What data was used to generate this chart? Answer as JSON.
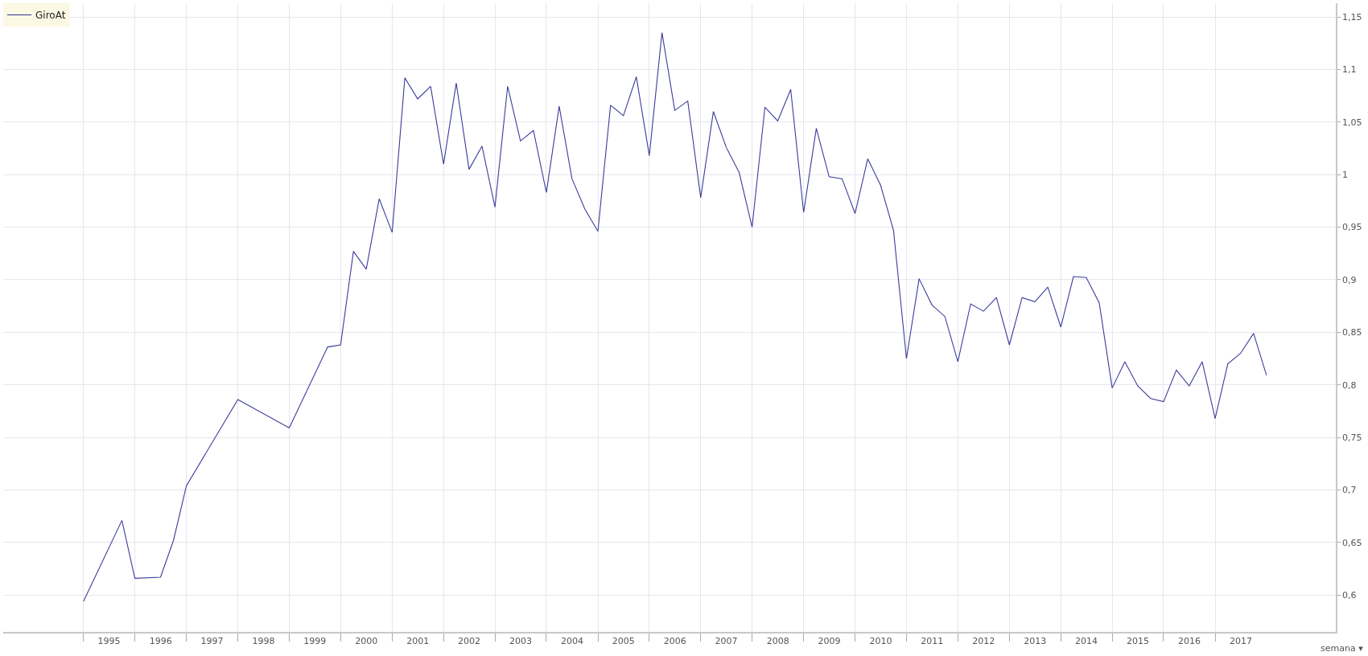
{
  "chart_data": {
    "type": "line",
    "x": [
      "1995-01-01",
      "1995-10-01",
      "1996-01-01",
      "1996-07-01",
      "1996-10-01",
      "1997-01-01",
      "1998-01-01",
      "1999-01-01",
      "1999-10-01",
      "2000-01-01",
      "2000-04-01",
      "2000-07-01",
      "2000-10-01",
      "2001-01-01",
      "2001-04-01",
      "2001-07-01",
      "2001-10-01",
      "2002-01-01",
      "2002-04-01",
      "2002-07-01",
      "2002-10-01",
      "2003-01-01",
      "2003-04-01",
      "2003-07-01",
      "2003-10-01",
      "2004-01-01",
      "2004-04-01",
      "2004-07-01",
      "2004-10-01",
      "2005-01-01",
      "2005-04-01",
      "2005-07-01",
      "2005-10-01",
      "2006-01-01",
      "2006-04-01",
      "2006-07-01",
      "2006-10-01",
      "2007-01-01",
      "2007-04-01",
      "2007-07-01",
      "2007-10-01",
      "2008-01-01",
      "2008-04-01",
      "2008-07-01",
      "2008-10-01",
      "2009-01-01",
      "2009-04-01",
      "2009-07-01",
      "2009-10-01",
      "2010-01-01",
      "2010-04-01",
      "2010-07-01",
      "2010-10-01",
      "2011-01-01",
      "2011-04-01",
      "2011-07-01",
      "2011-10-01",
      "2012-01-01",
      "2012-04-01",
      "2012-07-01",
      "2012-10-01",
      "2013-01-01",
      "2013-04-01",
      "2013-07-01",
      "2013-10-01",
      "2014-01-01",
      "2014-04-01",
      "2014-07-01",
      "2014-10-01",
      "2015-01-01",
      "2015-04-01",
      "2015-07-01",
      "2015-10-01",
      "2016-01-01",
      "2016-04-01",
      "2016-07-01",
      "2016-10-01",
      "2017-01-01",
      "2017-04-01",
      "2017-07-01",
      "2017-10-01",
      "2018-01-01"
    ],
    "series": [
      {
        "name": "GiroAt",
        "color": "#3c3c9c",
        "values": [
          0.594,
          0.671,
          0.616,
          0.617,
          0.652,
          0.704,
          0.786,
          0.759,
          0.836,
          0.838,
          0.927,
          0.91,
          0.977,
          0.945,
          1.092,
          1.072,
          1.084,
          1.01,
          1.087,
          1.005,
          1.027,
          0.969,
          1.084,
          1.032,
          1.042,
          0.983,
          1.065,
          0.996,
          0.967,
          0.946,
          1.066,
          1.056,
          1.093,
          1.018,
          1.135,
          1.061,
          1.07,
          0.978,
          1.06,
          1.026,
          1.002,
          0.95,
          1.064,
          1.051,
          1.081,
          0.964,
          1.044,
          0.998,
          0.996,
          0.963,
          1.015,
          0.99,
          0.947,
          0.825,
          0.901,
          0.876,
          0.865,
          0.822,
          0.877,
          0.87,
          0.883,
          0.838,
          0.883,
          0.879,
          0.893,
          0.855,
          0.903,
          0.902,
          0.878,
          0.797,
          0.822,
          0.799,
          0.787,
          0.784,
          0.814,
          0.799,
          0.822,
          0.768,
          0.82,
          0.83,
          0.849,
          0.809
        ]
      }
    ],
    "xlim": [
      "1993-06-10",
      "2019-05-08"
    ],
    "xticks": [
      {
        "value": "1995-01-01",
        "label": null
      },
      {
        "value": "1995-07-02",
        "label": "1995"
      },
      {
        "value": "1996-01-01",
        "label": null
      },
      {
        "value": "1996-07-02",
        "label": "1996"
      },
      {
        "value": "1997-01-01",
        "label": null
      },
      {
        "value": "1997-07-02",
        "label": "1997"
      },
      {
        "value": "1998-01-01",
        "label": null
      },
      {
        "value": "1998-07-02",
        "label": "1998"
      },
      {
        "value": "1999-01-01",
        "label": null
      },
      {
        "value": "1999-07-02",
        "label": "1999"
      },
      {
        "value": "2000-01-01",
        "label": null
      },
      {
        "value": "2000-07-02",
        "label": "2000"
      },
      {
        "value": "2001-01-01",
        "label": null
      },
      {
        "value": "2001-07-02",
        "label": "2001"
      },
      {
        "value": "2002-01-01",
        "label": null
      },
      {
        "value": "2002-07-02",
        "label": "2002"
      },
      {
        "value": "2003-01-01",
        "label": null
      },
      {
        "value": "2003-07-02",
        "label": "2003"
      },
      {
        "value": "2004-01-01",
        "label": null
      },
      {
        "value": "2004-07-02",
        "label": "2004"
      },
      {
        "value": "2005-01-01",
        "label": null
      },
      {
        "value": "2005-07-02",
        "label": "2005"
      },
      {
        "value": "2006-01-01",
        "label": null
      },
      {
        "value": "2006-07-02",
        "label": "2006"
      },
      {
        "value": "2007-01-01",
        "label": null
      },
      {
        "value": "2007-07-02",
        "label": "2007"
      },
      {
        "value": "2008-01-01",
        "label": null
      },
      {
        "value": "2008-07-02",
        "label": "2008"
      },
      {
        "value": "2009-01-01",
        "label": null
      },
      {
        "value": "2009-07-02",
        "label": "2009"
      },
      {
        "value": "2010-01-01",
        "label": null
      },
      {
        "value": "2010-07-02",
        "label": "2010"
      },
      {
        "value": "2011-01-01",
        "label": null
      },
      {
        "value": "2011-07-02",
        "label": "2011"
      },
      {
        "value": "2012-01-01",
        "label": null
      },
      {
        "value": "2012-07-02",
        "label": "2012"
      },
      {
        "value": "2013-01-01",
        "label": null
      },
      {
        "value": "2013-07-02",
        "label": "2013"
      },
      {
        "value": "2014-01-01",
        "label": null
      },
      {
        "value": "2014-07-02",
        "label": "2014"
      },
      {
        "value": "2015-01-01",
        "label": null
      },
      {
        "value": "2015-07-02",
        "label": "2015"
      },
      {
        "value": "2016-01-01",
        "label": null
      },
      {
        "value": "2016-07-02",
        "label": "2016"
      },
      {
        "value": "2017-01-01",
        "label": null
      },
      {
        "value": "2017-07-02",
        "label": "2017"
      }
    ],
    "ylim": [
      0.565,
      1.163
    ],
    "yticks": [
      {
        "value": 0.6,
        "label": "0,6"
      },
      {
        "value": 0.65,
        "label": "0,65"
      },
      {
        "value": 0.7,
        "label": "0,7"
      },
      {
        "value": 0.75,
        "label": "0,75"
      },
      {
        "value": 0.8,
        "label": "0,8"
      },
      {
        "value": 0.85,
        "label": "0,85"
      },
      {
        "value": 0.9,
        "label": "0,9"
      },
      {
        "value": 0.95,
        "label": "0,95"
      },
      {
        "value": 1,
        "label": "1"
      },
      {
        "value": 1.05,
        "label": "1,05"
      },
      {
        "value": 1.1,
        "label": "1,1"
      },
      {
        "value": 1.15,
        "label": "1,15"
      }
    ],
    "grid": true,
    "legend": "top left",
    "marker": "none",
    "line_style": "solid",
    "annotations": [
      "semana ▾"
    ]
  }
}
